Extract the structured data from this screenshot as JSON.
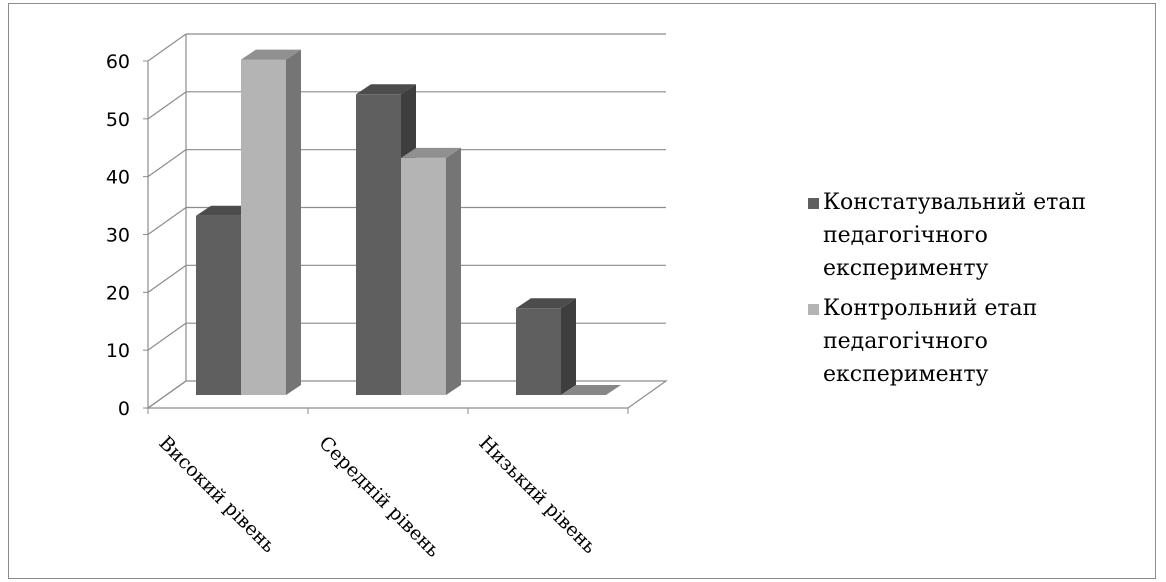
{
  "chart_data": {
    "type": "bar",
    "categories": [
      "Високий рівень",
      "Середній рівень",
      "Низький рівень"
    ],
    "series": [
      {
        "name": "Констатувальний етап педагогічного експерименту",
        "values": [
          31,
          52,
          15
        ],
        "color": "#5f5f5f"
      },
      {
        "name": "Контрольний етап педагогічного експерименту",
        "values": [
          58,
          41,
          0
        ],
        "color": "#b4b4b4"
      }
    ],
    "yticks": [
      0,
      10,
      20,
      30,
      40,
      50,
      60
    ],
    "ylim": [
      0,
      60
    ],
    "grid": true,
    "legend": "right",
    "style": "3d-column"
  }
}
